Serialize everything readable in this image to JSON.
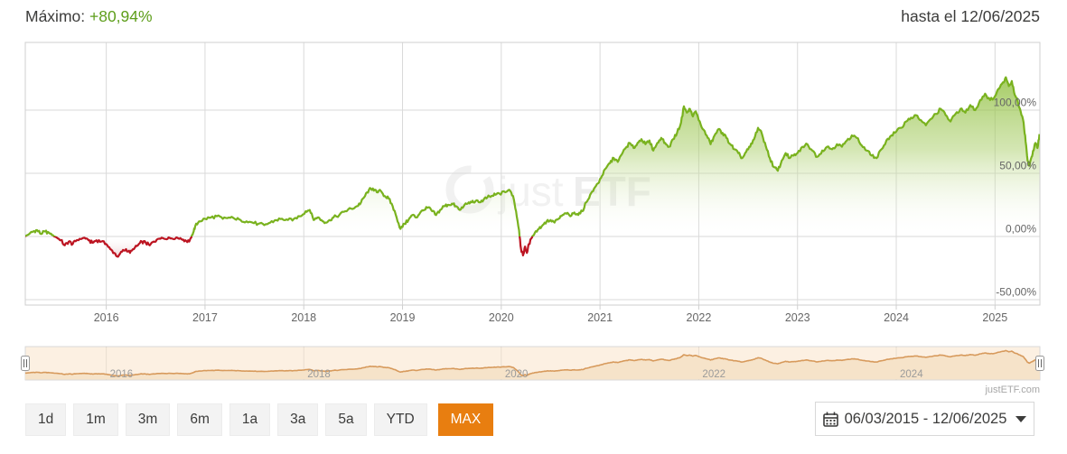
{
  "header": {
    "max_label": "Máximo:",
    "max_value": "+80,94%",
    "until_text": "hasta el 12/06/2025"
  },
  "chart_data": {
    "type": "area",
    "title": "",
    "xlabel": "",
    "ylabel": "",
    "x_axis": {
      "labels": [
        "2016",
        "2017",
        "2018",
        "2019",
        "2020",
        "2021",
        "2022",
        "2023",
        "2024",
        "2025"
      ],
      "years": [
        2016,
        2017,
        2018,
        2019,
        2020,
        2021,
        2022,
        2023,
        2024,
        2025
      ],
      "range_years": [
        2015.18,
        2025.45
      ],
      "start_date": "06/03/2015",
      "end_date": "12/06/2025"
    },
    "y_axis": {
      "ticks": [
        {
          "label": "100,00%",
          "value": 100
        },
        {
          "label": "50,00%",
          "value": 50
        },
        {
          "label": "0,00%",
          "value": 0
        },
        {
          "label": "-50,00%",
          "value": -50
        }
      ],
      "range_pct": [
        -54,
        153
      ]
    },
    "grid": true,
    "legend": "none",
    "series": [
      {
        "name": "performance-pct",
        "points": [
          [
            2015.18,
            0
          ],
          [
            2015.22,
            2
          ],
          [
            2015.26,
            4
          ],
          [
            2015.3,
            5
          ],
          [
            2015.34,
            2
          ],
          [
            2015.38,
            4
          ],
          [
            2015.42,
            3
          ],
          [
            2015.46,
            1
          ],
          [
            2015.5,
            -1
          ],
          [
            2015.54,
            -3
          ],
          [
            2015.58,
            -7
          ],
          [
            2015.62,
            -4
          ],
          [
            2015.66,
            -6
          ],
          [
            2015.7,
            -3
          ],
          [
            2015.74,
            -2
          ],
          [
            2015.78,
            -1
          ],
          [
            2015.82,
            -3
          ],
          [
            2015.86,
            -5
          ],
          [
            2015.9,
            -3
          ],
          [
            2015.95,
            -4
          ],
          [
            2016.0,
            -6
          ],
          [
            2016.04,
            -10
          ],
          [
            2016.08,
            -13
          ],
          [
            2016.12,
            -16
          ],
          [
            2016.16,
            -12
          ],
          [
            2016.2,
            -10
          ],
          [
            2016.24,
            -13
          ],
          [
            2016.28,
            -10
          ],
          [
            2016.32,
            -7
          ],
          [
            2016.36,
            -4
          ],
          [
            2016.4,
            -5
          ],
          [
            2016.44,
            -7
          ],
          [
            2016.48,
            -4
          ],
          [
            2016.52,
            -2
          ],
          [
            2016.56,
            -1
          ],
          [
            2016.6,
            -2
          ],
          [
            2016.64,
            -1
          ],
          [
            2016.68,
            -2
          ],
          [
            2016.72,
            -1
          ],
          [
            2016.76,
            -2
          ],
          [
            2016.8,
            -3
          ],
          [
            2016.84,
            -4
          ],
          [
            2016.86,
            -1
          ],
          [
            2016.88,
            3
          ],
          [
            2016.9,
            8
          ],
          [
            2016.94,
            12
          ],
          [
            2017.0,
            14
          ],
          [
            2017.06,
            15
          ],
          [
            2017.12,
            16
          ],
          [
            2017.18,
            14
          ],
          [
            2017.24,
            15
          ],
          [
            2017.3,
            14
          ],
          [
            2017.36,
            13
          ],
          [
            2017.42,
            12
          ],
          [
            2017.48,
            11
          ],
          [
            2017.54,
            10
          ],
          [
            2017.6,
            9
          ],
          [
            2017.66,
            11
          ],
          [
            2017.72,
            13
          ],
          [
            2017.78,
            14
          ],
          [
            2017.84,
            13
          ],
          [
            2017.9,
            14
          ],
          [
            2017.96,
            16
          ],
          [
            2018.02,
            20
          ],
          [
            2018.06,
            21
          ],
          [
            2018.1,
            13
          ],
          [
            2018.14,
            15
          ],
          [
            2018.18,
            13
          ],
          [
            2018.22,
            11
          ],
          [
            2018.26,
            13
          ],
          [
            2018.3,
            15
          ],
          [
            2018.36,
            17
          ],
          [
            2018.42,
            20
          ],
          [
            2018.48,
            22
          ],
          [
            2018.54,
            24
          ],
          [
            2018.58,
            27
          ],
          [
            2018.62,
            32
          ],
          [
            2018.66,
            37
          ],
          [
            2018.7,
            38
          ],
          [
            2018.74,
            35
          ],
          [
            2018.78,
            36
          ],
          [
            2018.82,
            32
          ],
          [
            2018.86,
            30
          ],
          [
            2018.9,
            24
          ],
          [
            2018.94,
            15
          ],
          [
            2018.98,
            6
          ],
          [
            2019.02,
            10
          ],
          [
            2019.06,
            13
          ],
          [
            2019.1,
            17
          ],
          [
            2019.14,
            15
          ],
          [
            2019.18,
            19
          ],
          [
            2019.22,
            21
          ],
          [
            2019.26,
            23
          ],
          [
            2019.3,
            20
          ],
          [
            2019.34,
            17
          ],
          [
            2019.38,
            21
          ],
          [
            2019.42,
            24
          ],
          [
            2019.46,
            25
          ],
          [
            2019.5,
            26
          ],
          [
            2019.54,
            24
          ],
          [
            2019.58,
            21
          ],
          [
            2019.62,
            24
          ],
          [
            2019.66,
            26
          ],
          [
            2019.7,
            27
          ],
          [
            2019.74,
            28
          ],
          [
            2019.78,
            27
          ],
          [
            2019.82,
            29
          ],
          [
            2019.86,
            31
          ],
          [
            2019.9,
            32
          ],
          [
            2019.94,
            33
          ],
          [
            2019.98,
            34
          ],
          [
            2020.04,
            35
          ],
          [
            2020.08,
            37
          ],
          [
            2020.12,
            32
          ],
          [
            2020.15,
            20
          ],
          [
            2020.18,
            5
          ],
          [
            2020.2,
            -10
          ],
          [
            2020.22,
            -15
          ],
          [
            2020.24,
            -8
          ],
          [
            2020.26,
            -13
          ],
          [
            2020.28,
            -6
          ],
          [
            2020.31,
            -1
          ],
          [
            2020.34,
            3
          ],
          [
            2020.38,
            6
          ],
          [
            2020.42,
            9
          ],
          [
            2020.46,
            12
          ],
          [
            2020.5,
            13
          ],
          [
            2020.54,
            11
          ],
          [
            2020.58,
            14
          ],
          [
            2020.62,
            17
          ],
          [
            2020.66,
            18
          ],
          [
            2020.7,
            16
          ],
          [
            2020.74,
            19
          ],
          [
            2020.78,
            17
          ],
          [
            2020.82,
            20
          ],
          [
            2020.86,
            27
          ],
          [
            2020.9,
            33
          ],
          [
            2020.94,
            38
          ],
          [
            2020.98,
            42
          ],
          [
            2021.02,
            48
          ],
          [
            2021.06,
            54
          ],
          [
            2021.1,
            58
          ],
          [
            2021.14,
            62
          ],
          [
            2021.18,
            59
          ],
          [
            2021.22,
            65
          ],
          [
            2021.26,
            70
          ],
          [
            2021.3,
            74
          ],
          [
            2021.34,
            70
          ],
          [
            2021.38,
            74
          ],
          [
            2021.42,
            77
          ],
          [
            2021.46,
            73
          ],
          [
            2021.5,
            76
          ],
          [
            2021.54,
            68
          ],
          [
            2021.58,
            74
          ],
          [
            2021.62,
            78
          ],
          [
            2021.66,
            74
          ],
          [
            2021.7,
            71
          ],
          [
            2021.74,
            77
          ],
          [
            2021.78,
            82
          ],
          [
            2021.82,
            90
          ],
          [
            2021.85,
            103
          ],
          [
            2021.88,
            98
          ],
          [
            2021.91,
            101
          ],
          [
            2021.94,
            95
          ],
          [
            2021.97,
            99
          ],
          [
            2022.0,
            92
          ],
          [
            2022.04,
            85
          ],
          [
            2022.08,
            80
          ],
          [
            2022.12,
            73
          ],
          [
            2022.16,
            80
          ],
          [
            2022.2,
            85
          ],
          [
            2022.24,
            82
          ],
          [
            2022.28,
            78
          ],
          [
            2022.32,
            73
          ],
          [
            2022.36,
            69
          ],
          [
            2022.4,
            66
          ],
          [
            2022.44,
            62
          ],
          [
            2022.48,
            67
          ],
          [
            2022.52,
            71
          ],
          [
            2022.56,
            77
          ],
          [
            2022.6,
            86
          ],
          [
            2022.64,
            81
          ],
          [
            2022.68,
            71
          ],
          [
            2022.72,
            62
          ],
          [
            2022.76,
            55
          ],
          [
            2022.8,
            52
          ],
          [
            2022.84,
            60
          ],
          [
            2022.88,
            66
          ],
          [
            2022.92,
            62
          ],
          [
            2022.96,
            64
          ],
          [
            2023.0,
            66
          ],
          [
            2023.05,
            71
          ],
          [
            2023.1,
            73
          ],
          [
            2023.15,
            68
          ],
          [
            2023.2,
            63
          ],
          [
            2023.25,
            68
          ],
          [
            2023.3,
            71
          ],
          [
            2023.35,
            69
          ],
          [
            2023.4,
            73
          ],
          [
            2023.45,
            71
          ],
          [
            2023.5,
            76
          ],
          [
            2023.55,
            80
          ],
          [
            2023.6,
            78
          ],
          [
            2023.65,
            72
          ],
          [
            2023.7,
            68
          ],
          [
            2023.75,
            64
          ],
          [
            2023.8,
            62
          ],
          [
            2023.85,
            69
          ],
          [
            2023.9,
            76
          ],
          [
            2023.95,
            80
          ],
          [
            2024.0,
            83
          ],
          [
            2024.05,
            86
          ],
          [
            2024.1,
            91
          ],
          [
            2024.15,
            94
          ],
          [
            2024.2,
            96
          ],
          [
            2024.25,
            92
          ],
          [
            2024.3,
            88
          ],
          [
            2024.35,
            93
          ],
          [
            2024.4,
            97
          ],
          [
            2024.45,
            101
          ],
          [
            2024.5,
            96
          ],
          [
            2024.55,
            91
          ],
          [
            2024.6,
            97
          ],
          [
            2024.65,
            101
          ],
          [
            2024.7,
            98
          ],
          [
            2024.75,
            104
          ],
          [
            2024.8,
            100
          ],
          [
            2024.85,
            108
          ],
          [
            2024.9,
            113
          ],
          [
            2024.95,
            108
          ],
          [
            2025.0,
            111
          ],
          [
            2025.04,
            117
          ],
          [
            2025.08,
            122
          ],
          [
            2025.11,
            126
          ],
          [
            2025.14,
            119
          ],
          [
            2025.17,
            123
          ],
          [
            2025.2,
            112
          ],
          [
            2025.23,
            107
          ],
          [
            2025.26,
            99
          ],
          [
            2025.29,
            90
          ],
          [
            2025.31,
            75
          ],
          [
            2025.33,
            60
          ],
          [
            2025.35,
            56
          ],
          [
            2025.37,
            63
          ],
          [
            2025.39,
            68
          ],
          [
            2025.41,
            74
          ],
          [
            2025.43,
            70
          ],
          [
            2025.45,
            81
          ]
        ]
      }
    ],
    "final_value_pct": 80.94,
    "max_period_return": "+80,94%"
  },
  "navigator": {
    "year_labels": [
      "2016",
      "2018",
      "2020",
      "2022",
      "2024"
    ],
    "years": [
      2016,
      2018,
      2020,
      2022,
      2024
    ]
  },
  "watermark": {
    "logo": "justetf-ring-logo",
    "part1": "just",
    "part2": "ETF"
  },
  "footer": {
    "credit": "justETF.com"
  },
  "range_buttons": [
    {
      "label": "1d",
      "active": false
    },
    {
      "label": "1m",
      "active": false
    },
    {
      "label": "3m",
      "active": false
    },
    {
      "label": "6m",
      "active": false
    },
    {
      "label": "1a",
      "active": false
    },
    {
      "label": "3a",
      "active": false
    },
    {
      "label": "5a",
      "active": false
    },
    {
      "label": "YTD",
      "active": false
    },
    {
      "label": "MAX",
      "active": true
    }
  ],
  "date_range": {
    "value": "06/03/2015 - 12/06/2025"
  },
  "colors": {
    "positive_line": "#79b21e",
    "positive_fill_top": "#7cb51f",
    "negative_line": "#bc1421",
    "negative_fill_deep": "#a50e18",
    "grid": "#dadada",
    "axis_border": "#cfcfcf",
    "tick_text": "#666666",
    "nav_background": "#fcf0e2",
    "nav_line": "#d79a5c",
    "nav_fill": "#f6e3c9",
    "accent_orange": "#e87e10",
    "value_green": "#5e9e1b"
  }
}
